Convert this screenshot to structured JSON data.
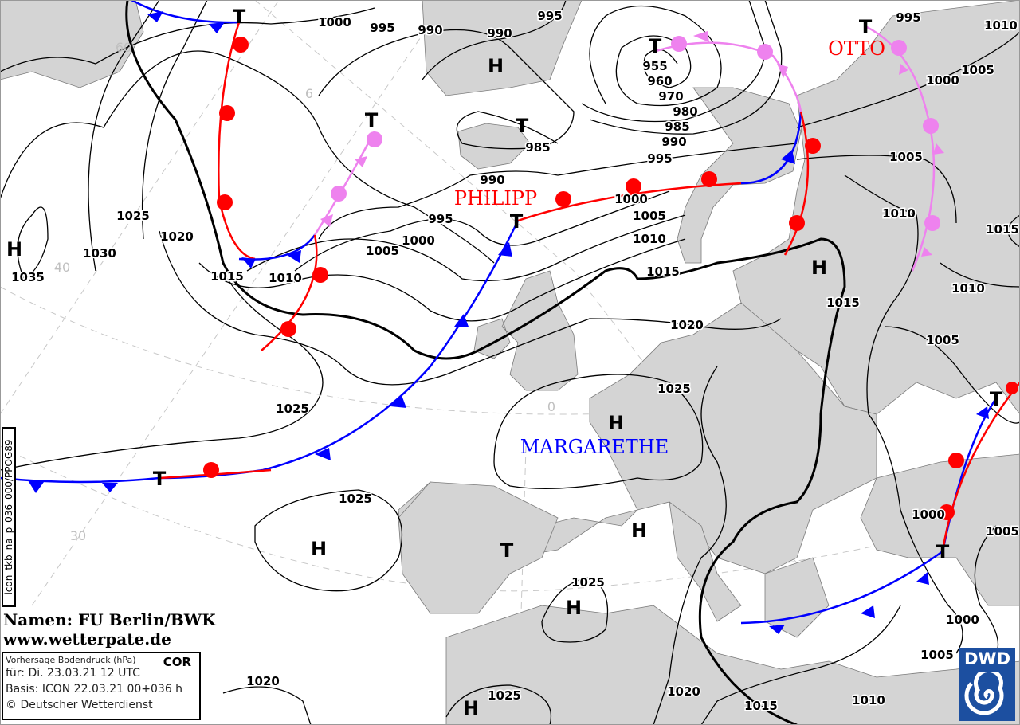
{
  "map": {
    "type": "surface pressure forecast chart",
    "unit": "hPa",
    "colors": {
      "land": "#d4d4d4",
      "sea": "#ffffff",
      "cold_front": "#0000ff",
      "warm_front": "#ff0000",
      "occlusion": "#ee82ee",
      "isobar": "#000000"
    },
    "isobar_labels": [
      "1000",
      "995",
      "990",
      "990",
      "995",
      "955",
      "960",
      "970",
      "980",
      "985",
      "990",
      "995",
      "1000",
      "1005",
      "1010",
      "1015",
      "1020",
      "1025",
      "985",
      "990",
      "995",
      "1000",
      "1005",
      "1010",
      "1015",
      "1020",
      "1025",
      "1030",
      "1035",
      "1025",
      "1025",
      "1025",
      "1025",
      "1020",
      "1020",
      "1015",
      "1010",
      "1005",
      "1000",
      "1000",
      "1005",
      "1005",
      "1010",
      "1010",
      "1005",
      "1000",
      "1005",
      "995",
      "1010",
      "1015",
      "1015"
    ],
    "pressure_centers": [
      "T",
      "T",
      "T",
      "T",
      "H",
      "T",
      "T",
      "H",
      "H",
      "H",
      "H",
      "T",
      "H",
      "H",
      "H",
      "T",
      "T",
      "T"
    ],
    "grid_labels": [
      "60",
      "6",
      "40",
      "30",
      "0"
    ],
    "system_names": [
      {
        "name": "PHILIPP",
        "color": "#ff0000"
      },
      {
        "name": "OTTO",
        "color": "#ff0000"
      },
      {
        "name": "MARGARETHE",
        "color": "#0000ff"
      }
    ]
  },
  "credit": {
    "line1": "Namen: FU Berlin/BWK",
    "line2": "www.wetterpate.de"
  },
  "infobox": {
    "title": "Vorhersage Bodendruck (hPa)",
    "flag": "COR",
    "valid": "für:  Di. 23.03.21  12 UTC",
    "basis": "Basis: ICON  22.03.21 00+036 h",
    "copyright": "© Deutscher Wetterdienst"
  },
  "side_tag": "icon_tkb_na_p_036_000/PPOG89",
  "logo": {
    "text": "DWD",
    "color": "#1c4fa0"
  }
}
